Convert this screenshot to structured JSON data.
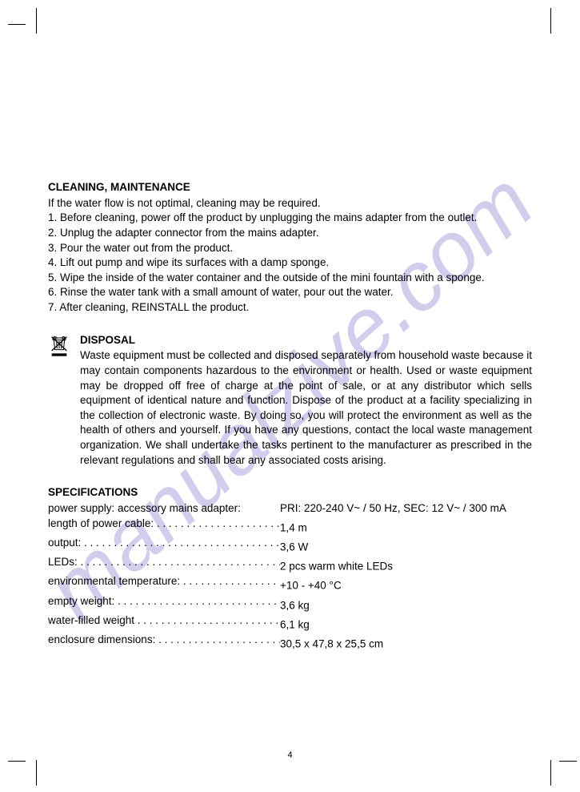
{
  "watermark": "manualzive.com",
  "page_number": "4",
  "cleaning": {
    "heading": "CLEANING, MAINTENANCE",
    "intro": "If the water flow is not optimal, cleaning may be required.",
    "steps": [
      "1. Before cleaning, power off the product by unplugging the mains adapter from the outlet.",
      "2. Unplug the adapter connector from the mains adapter.",
      "3. Pour the water out from the product.",
      "4. Lift out pump and wipe its surfaces with a damp sponge.",
      "5. Wipe the inside of the water container and the outside of the mini fountain with a sponge.",
      "6. Rinse the water tank with a small amount of water, pour out the water.",
      "7. After cleaning, REINSTALL the product."
    ]
  },
  "disposal": {
    "heading": "DISPOSAL",
    "body": "Waste equipment must be collected and disposed separately from household waste because it may contain components hazardous to the environment or health. Used or waste equipment may be dropped off free of charge at the point of sale, or at any distributor which sells equipment of identical nature and function. Dispose of the product at a facility specializing in the collection of electronic waste. By doing so, you will protect the environment as well as the health of others and yourself. If you have any questions, contact the local waste management organization. We shall undertake the tasks pertinent to the manufacturer as prescribed in the relevant regulations and shall bear any associated costs arising."
  },
  "specs": {
    "heading": "SPECIFICATIONS",
    "items": [
      {
        "label": "power supply: accessory mains adapter:",
        "value": "PRI: 220-240 V~ / 50 Hz, SEC: 12 V~ / 300 mA",
        "dots": false
      },
      {
        "label": "length of power cable:",
        "value": "1,4 m",
        "dots": true
      },
      {
        "label": "output:",
        "value": "3,6 W",
        "dots": true
      },
      {
        "label": "LEDs:",
        "value": "2 pcs warm white LEDs",
        "dots": true
      },
      {
        "label": "environmental temperature:",
        "value": "+10 - +40 °C",
        "dots": true
      },
      {
        "label": "empty weight:",
        "value": "3,6 kg",
        "dots": true
      },
      {
        "label": "water-filled weight",
        "value": "6,1 kg",
        "dots": true
      },
      {
        "label": "enclosure dimensions:",
        "value": "30,5 x 47,8 x 25,5 cm",
        "dots": true
      }
    ]
  }
}
